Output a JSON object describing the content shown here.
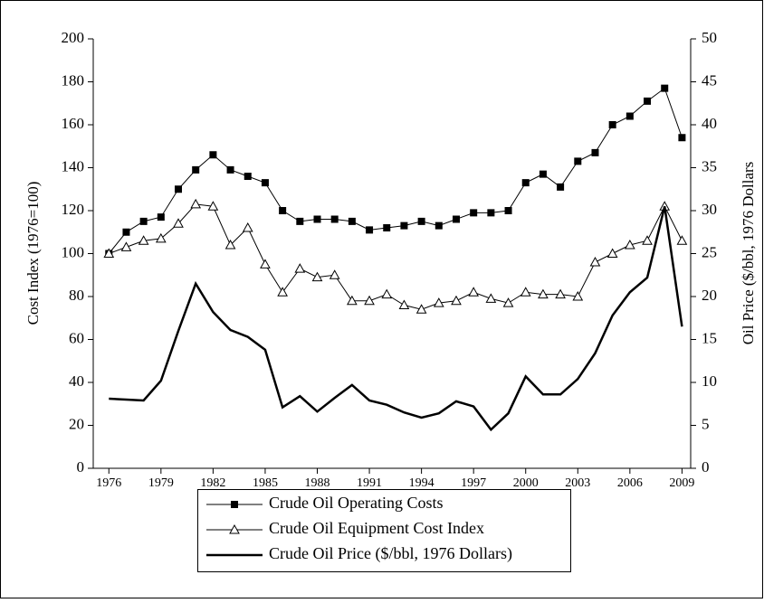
{
  "chart_data": {
    "type": "line",
    "ylabel": "Cost Index (1976=100)",
    "y2label": "Oil Price ($/bbl, 1976 Dollars",
    "x": [
      1976,
      1977,
      1978,
      1979,
      1980,
      1981,
      1982,
      1983,
      1984,
      1985,
      1986,
      1987,
      1988,
      1989,
      1990,
      1991,
      1992,
      1993,
      1994,
      1995,
      1996,
      1997,
      1998,
      1999,
      2000,
      2001,
      2002,
      2003,
      2004,
      2005,
      2006,
      2007,
      2008,
      2009
    ],
    "xlim": [
      1975.1,
      2009.5
    ],
    "xticks": [
      1976,
      1979,
      1982,
      1985,
      1988,
      1991,
      1994,
      1997,
      2000,
      2003,
      2006,
      2009
    ],
    "ylim": [
      0,
      200
    ],
    "yticks": [
      0,
      20,
      40,
      60,
      80,
      100,
      120,
      140,
      160,
      180,
      200
    ],
    "y2lim": [
      0,
      50
    ],
    "y2ticks": [
      0,
      5,
      10,
      15,
      20,
      25,
      30,
      35,
      40,
      45,
      50
    ],
    "legend": "bottom",
    "series": [
      {
        "name": "Crude Oil Operating Costs",
        "color": "#000000",
        "marker": "square",
        "values": [
          100,
          110,
          115,
          117,
          130,
          139,
          146,
          139,
          136,
          133,
          120,
          115,
          116,
          116,
          115,
          111,
          112,
          113,
          115,
          113,
          116,
          119,
          119,
          120,
          133,
          137,
          131,
          143,
          147,
          160,
          164,
          171,
          177,
          154
        ]
      },
      {
        "name": "Crude Oil Equipment Cost Index",
        "color": "#000000",
        "marker": "triangle",
        "values": [
          100,
          103,
          106,
          107,
          114,
          123,
          122,
          104,
          112,
          95,
          82,
          93,
          89,
          90,
          78,
          78,
          81,
          76,
          74,
          77,
          78,
          82,
          79,
          77,
          82,
          81,
          81,
          80,
          96,
          100,
          104,
          106,
          122,
          106
        ]
      },
      {
        "name": "Crude Oil Price ($/bbl, 1976 Dollars)",
        "color": "#000000",
        "marker": "none",
        "axis": "y2",
        "values": [
          8.1,
          8.0,
          7.9,
          10.2,
          16.0,
          21.5,
          18.2,
          16.1,
          15.3,
          13.8,
          7.1,
          8.4,
          6.6,
          8.2,
          9.7,
          7.9,
          7.4,
          6.5,
          5.9,
          6.4,
          7.8,
          7.2,
          4.5,
          6.4,
          10.7,
          8.6,
          8.6,
          10.4,
          13.4,
          17.8,
          20.5,
          22.2,
          30.5,
          16.5
        ]
      }
    ]
  }
}
